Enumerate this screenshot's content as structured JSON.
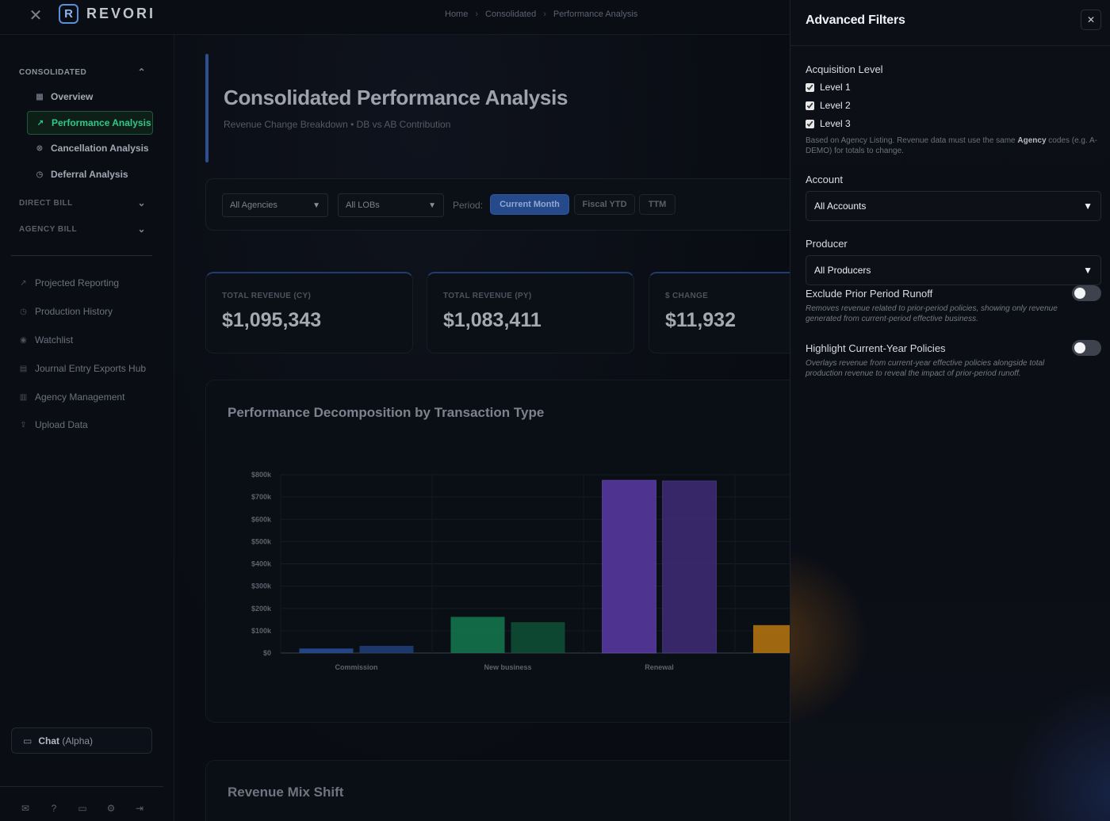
{
  "app": {
    "brand": "REVORI",
    "logo_glyph": "R"
  },
  "breadcrumb": [
    "Home",
    "Consolidated",
    "Performance Analysis"
  ],
  "sidebar": {
    "consolidated": {
      "label": "CONSOLIDATED",
      "items": [
        {
          "label": "Overview",
          "icon": "grid-icon"
        },
        {
          "label": "Performance Analysis",
          "icon": "trend-icon",
          "active": true
        },
        {
          "label": "Cancellation Analysis",
          "icon": "cancel-circle-icon"
        },
        {
          "label": "Deferral Analysis",
          "icon": "clock-icon"
        }
      ]
    },
    "direct_bill": "DIRECT BILL",
    "agency_bill": "AGENCY BILL",
    "nav": [
      {
        "label": "Projected Reporting",
        "icon": "trend-icon"
      },
      {
        "label": "Production History",
        "icon": "clock-icon"
      },
      {
        "label": "Watchlist",
        "icon": "eye-icon"
      },
      {
        "label": "Journal Entry Exports Hub",
        "icon": "document-icon"
      },
      {
        "label": "Agency Management",
        "icon": "building-icon"
      },
      {
        "label": "Upload Data",
        "icon": "upload-icon"
      }
    ],
    "chat": {
      "label": "Chat",
      "suffix": " (Alpha)"
    }
  },
  "main": {
    "title": "Consolidated Performance Analysis",
    "subtitle": "Revenue Change Breakdown • DB vs AB Contribution",
    "filters": {
      "agencies": "All Agencies",
      "lobs": "All LOBs",
      "period_label": "Period:",
      "periods": [
        "Current Month",
        "Fiscal YTD",
        "TTM"
      ],
      "active_period": "Current Month"
    },
    "kpis": [
      {
        "label": "TOTAL REVENUE (CY)",
        "value": "$1,095,343"
      },
      {
        "label": "TOTAL REVENUE (PY)",
        "value": "$1,083,411"
      },
      {
        "label": "$ CHANGE",
        "value": "$11,932"
      }
    ],
    "chart_title": "Performance Decomposition by Transaction Type",
    "mix_title": "Revenue Mix Shift"
  },
  "chart_data": {
    "type": "bar",
    "title": "Performance Decomposition by Transaction Type",
    "categories": [
      "Commission",
      "New business",
      "Renewal"
    ],
    "series": [
      {
        "values": [
          20000,
          162000,
          775000
        ]
      },
      {
        "values": [
          32000,
          138000,
          772000
        ]
      }
    ],
    "extra_bar_partial": {
      "value": 125000,
      "color": "#b8770f"
    },
    "colors": {
      "Commission": [
        "#274f9a",
        "#203f78"
      ],
      "New business": [
        "#137a4e",
        "#0f5236"
      ],
      "Renewal": [
        "#5a3aa6",
        "#3f2c78"
      ]
    },
    "ylim": [
      0,
      800000
    ],
    "yticks": [
      "$0",
      "$100k",
      "$200k",
      "$300k",
      "$400k",
      "$500k",
      "$600k",
      "$700k",
      "$800k"
    ],
    "grid": true
  },
  "panel": {
    "title": "Advanced Filters",
    "acquisition": {
      "label": "Acquisition Level",
      "levels": [
        {
          "label": "Level 1",
          "checked": true
        },
        {
          "label": "Level 2",
          "checked": true
        },
        {
          "label": "Level 3",
          "checked": true
        }
      ],
      "note_pre": "Based on Agency Listing. Revenue data must use the same ",
      "note_bold": "Agency",
      "note_post": " codes (e.g. A-DEMO) for totals to change."
    },
    "account": {
      "label": "Account",
      "value": "All Accounts"
    },
    "producer": {
      "label": "Producer",
      "value": "All Producers"
    },
    "exclude_runoff": {
      "label": "Exclude Prior Period Runoff",
      "on": false,
      "description": "Removes revenue related to prior-period policies, showing only revenue generated from current-period effective business."
    },
    "highlight_cy": {
      "label": "Highlight Current-Year Policies",
      "on": false,
      "description": "Overlays revenue from current-year effective policies alongside total production revenue to reveal the impact of prior-period runoff."
    }
  }
}
